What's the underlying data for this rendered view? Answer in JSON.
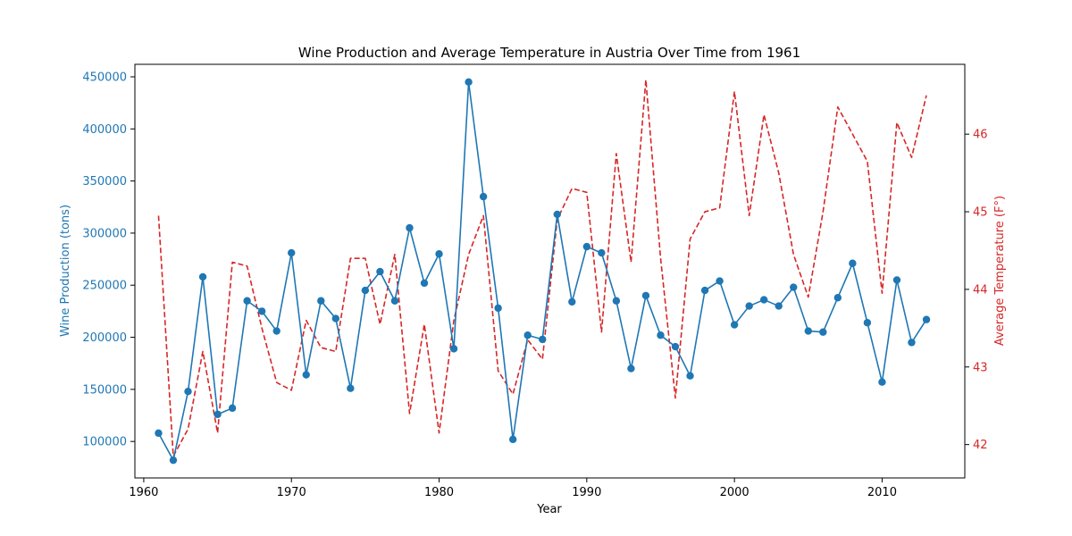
{
  "chart_data": {
    "type": "line",
    "title": "Wine Production and Average Temperature in Austria Over Time from 1961",
    "xlabel": "Year",
    "ylabel_left": "Wine Production (tons)",
    "ylabel_right": "Average Temperature (F°)",
    "xlim": [
      1959.4,
      2015.6
    ],
    "ylim_left": [
      65000,
      462000
    ],
    "ylim_right": [
      41.57,
      46.9
    ],
    "x_ticks": [
      1960,
      1970,
      1980,
      1990,
      2000,
      2010
    ],
    "y_ticks_left": [
      100000,
      150000,
      200000,
      250000,
      300000,
      350000,
      400000,
      450000
    ],
    "y_ticks_right": [
      42,
      43,
      44,
      45,
      46
    ],
    "grid": false,
    "legend": "none",
    "colors": {
      "left": "#1f77b4",
      "right": "#d62728"
    },
    "x": [
      1961,
      1962,
      1963,
      1964,
      1965,
      1966,
      1967,
      1968,
      1969,
      1970,
      1971,
      1972,
      1973,
      1974,
      1975,
      1976,
      1977,
      1978,
      1979,
      1980,
      1981,
      1982,
      1983,
      1984,
      1985,
      1986,
      1987,
      1988,
      1989,
      1990,
      1991,
      1992,
      1993,
      1994,
      1995,
      1996,
      1997,
      1998,
      1999,
      2000,
      2001,
      2002,
      2003,
      2004,
      2005,
      2006,
      2007,
      2008,
      2009,
      2010,
      2011,
      2012,
      2013
    ],
    "series": [
      {
        "axis": "left",
        "style": "solid-markers",
        "values": [
          108000,
          82000,
          148000,
          258000,
          126000,
          132000,
          235000,
          225000,
          206000,
          281000,
          164000,
          235000,
          218000,
          151000,
          245000,
          263000,
          235000,
          305000,
          252000,
          280000,
          189000,
          445000,
          335000,
          228000,
          102000,
          202000,
          198000,
          318000,
          234000,
          287000,
          281000,
          235000,
          170000,
          240000,
          202000,
          191000,
          163000,
          245000,
          254000,
          212000,
          230000,
          236000,
          230000,
          248000,
          206000,
          205000,
          238000,
          271000,
          214000,
          157000,
          255000,
          195000,
          217000
        ]
      },
      {
        "axis": "right",
        "style": "dashed",
        "values": [
          44.95,
          41.85,
          42.2,
          43.2,
          42.15,
          44.35,
          44.3,
          43.5,
          42.8,
          42.7,
          43.6,
          43.25,
          43.2,
          44.4,
          44.4,
          43.55,
          44.45,
          42.4,
          43.55,
          42.15,
          43.6,
          44.45,
          44.95,
          42.95,
          42.65,
          43.35,
          43.1,
          44.9,
          45.3,
          45.25,
          43.45,
          45.75,
          44.35,
          46.7,
          44.4,
          42.6,
          44.65,
          45.0,
          45.05,
          46.55,
          44.95,
          46.25,
          45.5,
          44.45,
          43.9,
          45.0,
          46.35,
          46.0,
          45.65,
          43.95,
          46.15,
          45.7,
          46.5
        ]
      }
    ]
  }
}
